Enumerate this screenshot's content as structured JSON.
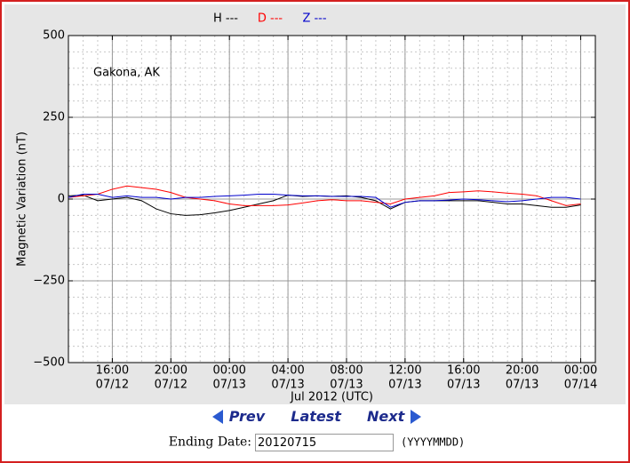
{
  "chart_data": {
    "type": "line",
    "legend": "top",
    "grid": true,
    "xlabel": "Jul 2012 (UTC)",
    "ylabel": "Magnetic Variation (nT)",
    "annotation": "Gakona, AK",
    "xlim": [
      "2012-07-12T13:00",
      "2012-07-14T01:00"
    ],
    "xticks": [
      {
        "value": "2012-07-12T16:00",
        "label": [
          "16:00",
          "07/12"
        ]
      },
      {
        "value": "2012-07-12T20:00",
        "label": [
          "20:00",
          "07/12"
        ]
      },
      {
        "value": "2012-07-13T00:00",
        "label": [
          "00:00",
          "07/13"
        ]
      },
      {
        "value": "2012-07-13T04:00",
        "label": [
          "04:00",
          "07/13"
        ]
      },
      {
        "value": "2012-07-13T08:00",
        "label": [
          "08:00",
          "07/13"
        ]
      },
      {
        "value": "2012-07-13T12:00",
        "label": [
          "12:00",
          "07/13"
        ]
      },
      {
        "value": "2012-07-13T16:00",
        "label": [
          "16:00",
          "07/13"
        ]
      },
      {
        "value": "2012-07-13T20:00",
        "label": [
          "20:00",
          "07/13"
        ]
      },
      {
        "value": "2012-07-14T00:00",
        "label": [
          "00:00",
          "07/14"
        ]
      }
    ],
    "ylim": [
      -500,
      500
    ],
    "yticks": [
      {
        "value": -500,
        "label": "−500"
      },
      {
        "value": -250,
        "label": "−250"
      },
      0,
      250,
      500
    ],
    "x": [
      "2012-07-12T13:00",
      "2012-07-12T14:00",
      "2012-07-12T15:00",
      "2012-07-12T16:00",
      "2012-07-12T17:00",
      "2012-07-12T18:00",
      "2012-07-12T19:00",
      "2012-07-12T20:00",
      "2012-07-12T21:00",
      "2012-07-12T22:00",
      "2012-07-12T23:00",
      "2012-07-13T00:00",
      "2012-07-13T01:00",
      "2012-07-13T02:00",
      "2012-07-13T03:00",
      "2012-07-13T04:00",
      "2012-07-13T05:00",
      "2012-07-13T06:00",
      "2012-07-13T07:00",
      "2012-07-13T08:00",
      "2012-07-13T09:00",
      "2012-07-13T10:00",
      "2012-07-13T11:00",
      "2012-07-13T12:00",
      "2012-07-13T13:00",
      "2012-07-13T14:00",
      "2012-07-13T15:00",
      "2012-07-13T16:00",
      "2012-07-13T17:00",
      "2012-07-13T18:00",
      "2012-07-13T19:00",
      "2012-07-13T20:00",
      "2012-07-13T21:00",
      "2012-07-13T22:00",
      "2012-07-13T23:00",
      "2012-07-14T00:00"
    ],
    "series": [
      {
        "name": "H ---",
        "color": "#000000",
        "values": [
          10,
          12,
          -5,
          0,
          5,
          -5,
          -30,
          -45,
          -50,
          -48,
          -42,
          -35,
          -25,
          -15,
          -5,
          12,
          8,
          10,
          8,
          10,
          5,
          -5,
          -30,
          -10,
          -5,
          -5,
          -5,
          -5,
          -5,
          -10,
          -15,
          -15,
          -20,
          -25,
          -25,
          -18
        ]
      },
      {
        "name": "D ---",
        "color": "#ff0000",
        "values": [
          5,
          10,
          15,
          30,
          40,
          35,
          30,
          20,
          5,
          0,
          -5,
          -15,
          -20,
          -20,
          -20,
          -18,
          -12,
          -5,
          -2,
          -5,
          -5,
          -10,
          -15,
          0,
          5,
          10,
          20,
          22,
          25,
          22,
          18,
          15,
          10,
          -5,
          -20,
          -15
        ]
      },
      {
        "name": "Z ---",
        "color": "#0000cc",
        "values": [
          5,
          15,
          15,
          5,
          10,
          5,
          5,
          0,
          5,
          5,
          8,
          10,
          12,
          15,
          15,
          12,
          10,
          10,
          8,
          8,
          8,
          5,
          -25,
          -10,
          -5,
          -5,
          -3,
          0,
          -2,
          -5,
          -8,
          -5,
          0,
          5,
          5,
          0
        ]
      }
    ]
  },
  "navigation": {
    "prev": "Prev",
    "latest": "Latest",
    "next": "Next"
  },
  "form": {
    "label": "Ending Date:",
    "value": "20120715",
    "hint": "(YYYYMMDD)"
  }
}
